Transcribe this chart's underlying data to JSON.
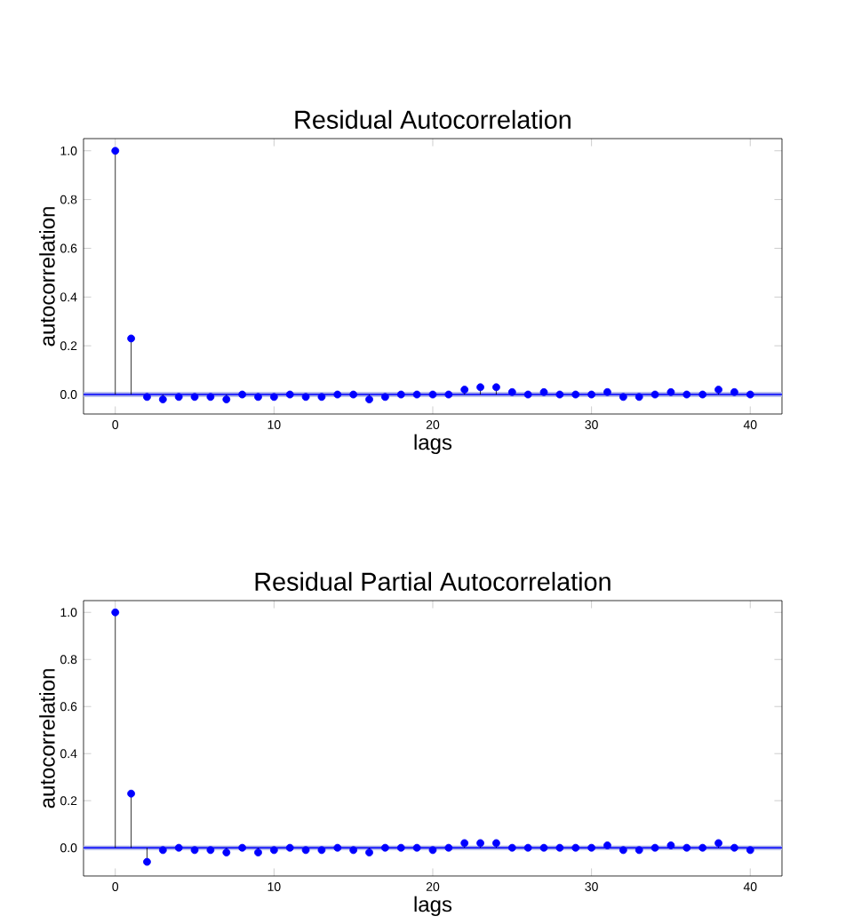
{
  "chart_data": [
    {
      "type": "lollipop",
      "title": "Residual Autocorrelation",
      "xlabel": "lags",
      "ylabel": "autocorrelation",
      "marker": "circle",
      "color": "#0000ff",
      "x": [
        0,
        1,
        2,
        3,
        4,
        5,
        6,
        7,
        8,
        9,
        10,
        11,
        12,
        13,
        14,
        15,
        16,
        17,
        18,
        19,
        20,
        21,
        22,
        23,
        24,
        25,
        26,
        27,
        28,
        29,
        30,
        31,
        32,
        33,
        34,
        35,
        36,
        37,
        38,
        39,
        40
      ],
      "values": [
        1.0,
        0.23,
        -0.01,
        -0.02,
        -0.01,
        -0.01,
        -0.01,
        -0.02,
        0.0,
        -0.01,
        -0.01,
        0.0,
        -0.01,
        -0.01,
        0.0,
        0.0,
        -0.02,
        -0.01,
        0.0,
        0.0,
        0.0,
        0.0,
        0.02,
        0.03,
        0.03,
        0.01,
        0.0,
        0.01,
        0.0,
        0.0,
        0.0,
        0.01,
        -0.01,
        -0.01,
        0.0,
        0.01,
        0.0,
        0.0,
        0.02,
        0.01,
        0.0
      ],
      "xlim": [
        -2,
        42
      ],
      "ylim": [
        -0.08,
        1.05
      ],
      "xticks": [
        0,
        10,
        20,
        30,
        40
      ],
      "yticks": [
        {
          "value": 0,
          "label": "0.0"
        },
        {
          "value": 0.2,
          "label": "0.2"
        },
        {
          "value": 0.4,
          "label": "0.4"
        },
        {
          "value": 0.6,
          "label": "0.6"
        },
        {
          "value": 0.8,
          "label": "0.8"
        },
        {
          "value": 1,
          "label": "1.0"
        }
      ],
      "ref_lines": [
        {
          "axis": "y",
          "value": 0,
          "color": "#0000ff"
        }
      ],
      "bands": [
        {
          "axis": "y",
          "from": -0.01,
          "to": 0.01,
          "color": "#aab0e8"
        }
      ]
    },
    {
      "type": "lollipop",
      "title": "Residual Partial Autocorrelation",
      "xlabel": "lags",
      "ylabel": "autocorrelation",
      "marker": "circle",
      "color": "#0000ff",
      "x": [
        0,
        1,
        2,
        3,
        4,
        5,
        6,
        7,
        8,
        9,
        10,
        11,
        12,
        13,
        14,
        15,
        16,
        17,
        18,
        19,
        20,
        21,
        22,
        23,
        24,
        25,
        26,
        27,
        28,
        29,
        30,
        31,
        32,
        33,
        34,
        35,
        36,
        37,
        38,
        39,
        40
      ],
      "values": [
        1.0,
        0.23,
        -0.06,
        -0.01,
        0.0,
        -0.01,
        -0.01,
        -0.02,
        0.0,
        -0.02,
        -0.01,
        0.0,
        -0.01,
        -0.01,
        0.0,
        -0.01,
        -0.02,
        0.0,
        0.0,
        0.0,
        -0.01,
        0.0,
        0.02,
        0.02,
        0.02,
        0.0,
        0.0,
        0.0,
        0.0,
        0.0,
        0.0,
        0.01,
        -0.01,
        -0.01,
        0.0,
        0.01,
        0.0,
        0.0,
        0.02,
        0.0,
        -0.01
      ],
      "xlim": [
        -2,
        42
      ],
      "ylim": [
        -0.12,
        1.05
      ],
      "xticks": [
        0,
        10,
        20,
        30,
        40
      ],
      "yticks": [
        {
          "value": 0,
          "label": "0.0"
        },
        {
          "value": 0.2,
          "label": "0.2"
        },
        {
          "value": 0.4,
          "label": "0.4"
        },
        {
          "value": 0.6,
          "label": "0.6"
        },
        {
          "value": 0.8,
          "label": "0.8"
        },
        {
          "value": 1,
          "label": "1.0"
        }
      ],
      "ref_lines": [
        {
          "axis": "y",
          "value": 0,
          "color": "#0000ff"
        }
      ],
      "bands": [
        {
          "axis": "y",
          "from": -0.01,
          "to": 0.01,
          "color": "#aab0e8"
        }
      ]
    }
  ]
}
